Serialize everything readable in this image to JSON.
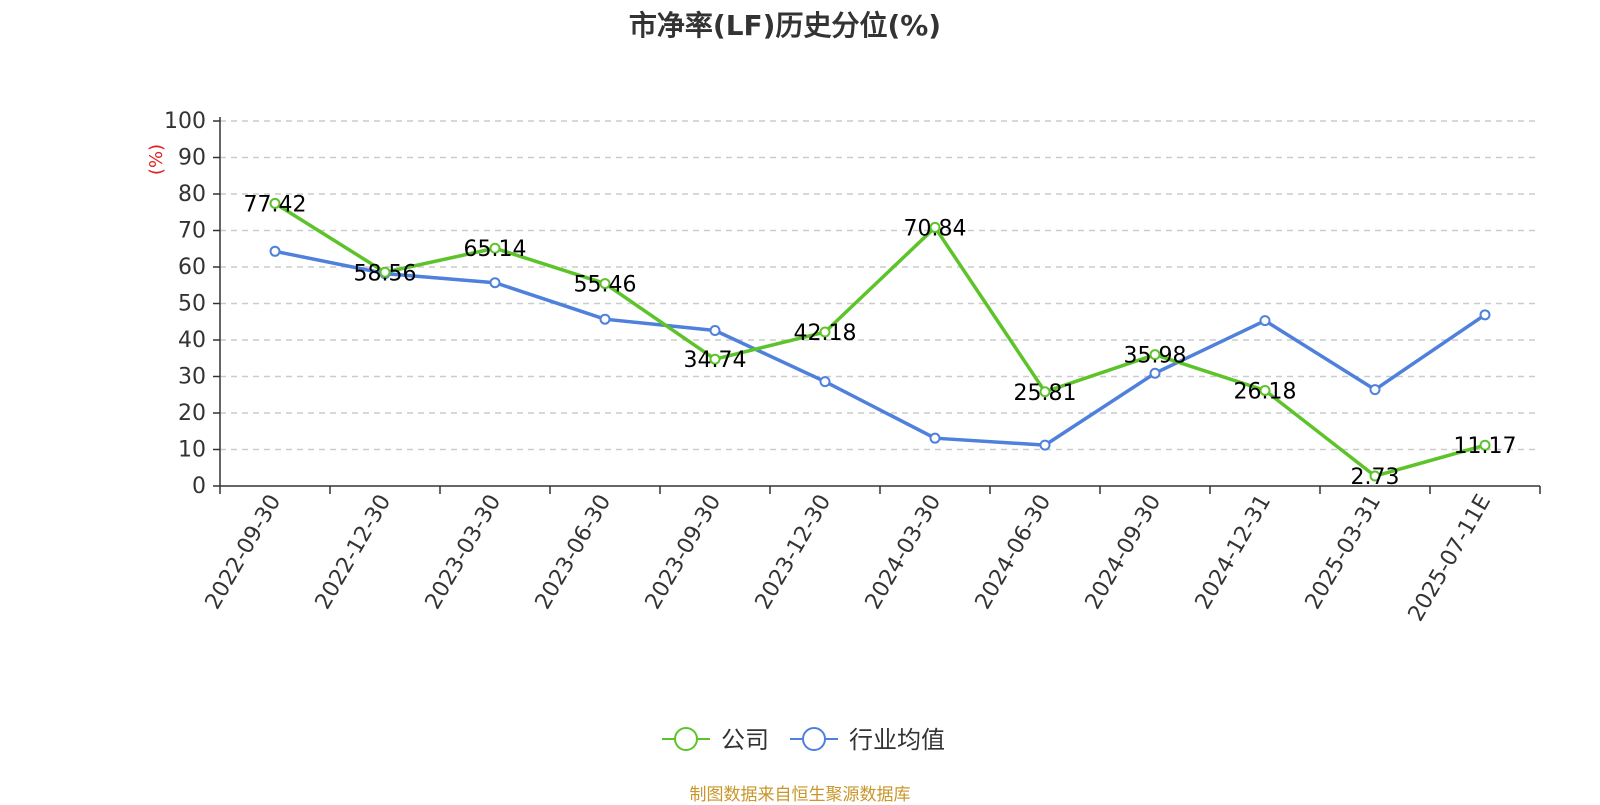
{
  "chart_data": {
    "type": "line",
    "title": "市净率(LF)历史分位(%)",
    "ylabel": "(%)",
    "ylim": [
      0,
      100
    ],
    "yticks": [
      0,
      10,
      20,
      30,
      40,
      50,
      60,
      70,
      80,
      90,
      100
    ],
    "grid": true,
    "legend_position": "bottom",
    "categories": [
      "2022-09-30",
      "2022-12-30",
      "2023-03-30",
      "2023-06-30",
      "2023-09-30",
      "2023-12-30",
      "2024-03-30",
      "2024-06-30",
      "2024-09-30",
      "2024-12-31",
      "2025-03-31",
      "2025-07-11E"
    ],
    "series": [
      {
        "name": "公司",
        "color": "#5cc42a",
        "values": [
          77.42,
          58.56,
          65.14,
          55.46,
          34.74,
          42.18,
          70.84,
          25.81,
          35.98,
          26.18,
          2.73,
          11.17
        ],
        "labels": [
          "77.42",
          "58.56",
          "65.14",
          "55.46",
          "34.74",
          "42.18",
          "70.84",
          "25.81",
          "35.98",
          "26.18",
          "2.73",
          "11.17"
        ]
      },
      {
        "name": "行业均值",
        "color": "#4e80dc",
        "values": [
          64.3,
          58.2,
          55.7,
          45.7,
          42.6,
          28.6,
          13.1,
          11.2,
          30.9,
          45.3,
          26.4,
          46.9
        ]
      }
    ]
  },
  "source": "制图数据来自恒生聚源数据库"
}
